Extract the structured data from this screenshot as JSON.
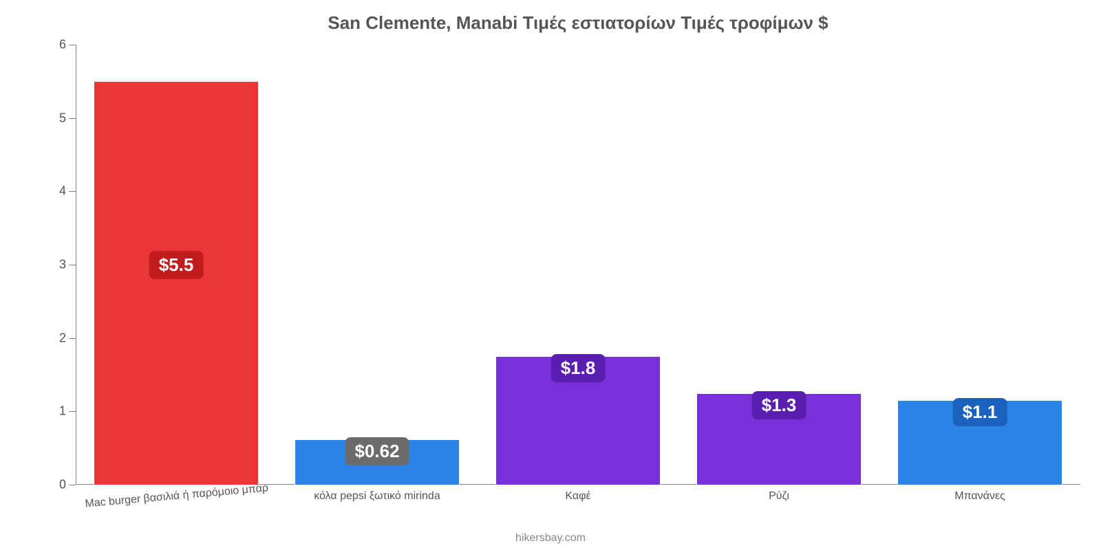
{
  "chart": {
    "type": "bar",
    "title": "San Clemente, Manabi Τιμές εστιατορίων Τιμές τροφίμων $",
    "title_fontsize": 26,
    "title_color": "#555555",
    "background_color": "#ffffff",
    "axis_color": "#808080",
    "label_color": "#555555",
    "label_fontsize": 18,
    "xlabel_fontsize": 16,
    "value_fontsize": 26,
    "ylim": [
      0,
      6
    ],
    "yticks": [
      0,
      1,
      2,
      3,
      4,
      5,
      6
    ],
    "bar_width": 0.82,
    "xlabel_rotation_first": -5,
    "categories": [
      "Mac burger βασιλιά ή παρόμοιο μπαρ",
      "κόλα pepsi ξωτικό mirinda",
      "Καφέ",
      "Ρύζι",
      "Μπανάνες"
    ],
    "values": [
      5.5,
      0.62,
      1.75,
      1.25,
      1.15
    ],
    "bar_colors": [
      "#eb3639",
      "#2a84e8",
      "#7930d8",
      "#7930d8",
      "#2a84e8"
    ],
    "value_labels": [
      "$5.5",
      "$0.62",
      "$1.8",
      "$1.3",
      "$1.1"
    ],
    "value_label_bg": [
      "#c21b1d",
      "#6b6b6b",
      "#5a1fb0",
      "#5a1fb0",
      "#1a62bb"
    ],
    "value_label_text_color": "#ffffff",
    "watermark": "hikersbay.com",
    "watermark_color": "#888888"
  }
}
